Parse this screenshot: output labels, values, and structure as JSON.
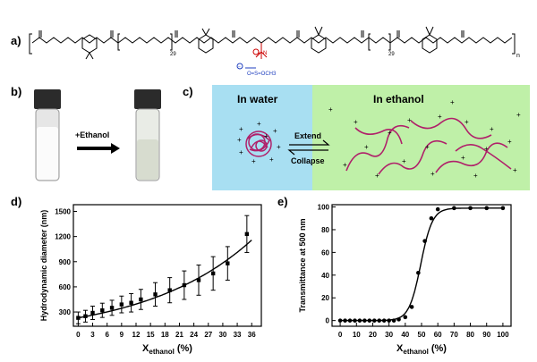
{
  "panels": {
    "a": "a)",
    "b": "b)",
    "c": "c)",
    "d": "d)",
    "e": "e)"
  },
  "structure": {
    "repeat_n1": "29",
    "repeat_n2": "29",
    "outer_n": "n",
    "anion": "O=S=OCH3",
    "colors": {
      "chain": "#000000",
      "cation": "#cc0000",
      "anion": "#1f3fbf"
    }
  },
  "panel_b": {
    "arrow_label": "+Ethanol"
  },
  "panel_c": {
    "left_title": "In water",
    "right_title": "In ethanol",
    "extend_label": "Extend",
    "collapse_label": "Collapse",
    "colors": {
      "water": "#a8dff2",
      "ethanol": "#bff0a8",
      "chain": "#b0206a"
    }
  },
  "chart_data": [
    {
      "type": "scatter",
      "panel": "d",
      "xlabel": "X",
      "xlabel_sub": "ethanol",
      "xlabel_unit": "(%)",
      "ylabel": "Hydrodynamic diameter (nm)",
      "xlim": [
        -1,
        38
      ],
      "ylim": [
        130,
        1580
      ],
      "xticks": [
        0,
        3,
        6,
        9,
        12,
        15,
        18,
        21,
        24,
        27,
        30,
        33,
        36
      ],
      "yticks": [
        300,
        600,
        900,
        1200,
        1500
      ],
      "x": [
        0,
        1.5,
        3,
        5,
        7,
        9,
        11,
        13,
        16,
        19,
        22,
        25,
        28,
        31,
        35
      ],
      "y": [
        230,
        250,
        290,
        320,
        350,
        390,
        410,
        450,
        510,
        560,
        620,
        680,
        760,
        880,
        1230
      ],
      "err": [
        70,
        70,
        80,
        85,
        90,
        100,
        110,
        120,
        140,
        150,
        170,
        180,
        200,
        200,
        220
      ],
      "fit": "exponential",
      "fit_params": {
        "a": 230,
        "b": 0.0449
      }
    },
    {
      "type": "scatter",
      "panel": "e",
      "xlabel": "X",
      "xlabel_sub": "ethanol",
      "xlabel_unit": "(%)",
      "ylabel": "Transmittance at 500 nm",
      "xlim": [
        -5,
        105
      ],
      "ylim": [
        -5,
        102
      ],
      "xticks": [
        0,
        10,
        20,
        30,
        40,
        50,
        60,
        70,
        80,
        90,
        100
      ],
      "yticks": [
        0,
        20,
        40,
        60,
        80,
        100
      ],
      "x": [
        0,
        3,
        6,
        9,
        12,
        15,
        18,
        21,
        24,
        27,
        30,
        33,
        36,
        40,
        44,
        48,
        52,
        56,
        60,
        70,
        80,
        90,
        100
      ],
      "y": [
        0,
        0,
        0,
        0,
        0,
        0,
        0,
        0,
        0,
        0,
        0,
        0,
        1,
        3,
        12,
        42,
        70,
        90,
        98,
        99,
        99,
        99,
        99
      ],
      "fit": "sigmoid",
      "fit_params": {
        "top": 99,
        "mid": 49.5,
        "slope": 3.6
      }
    }
  ]
}
